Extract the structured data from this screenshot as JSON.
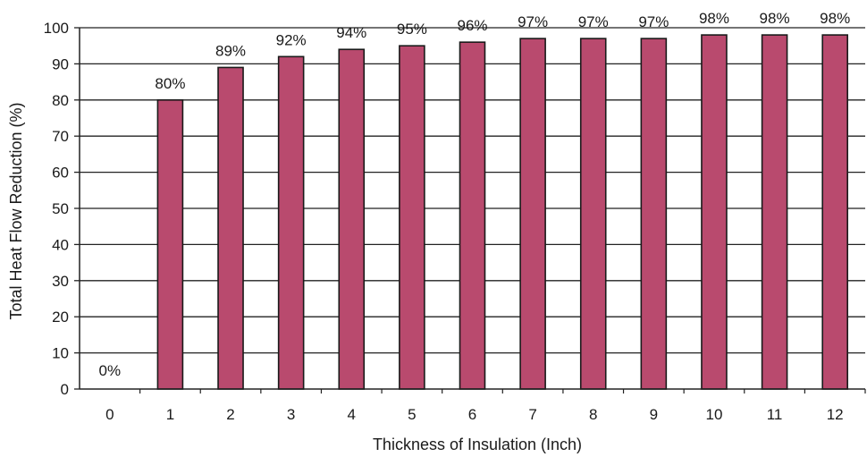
{
  "chart_data": {
    "type": "bar",
    "categories": [
      "0",
      "1",
      "2",
      "3",
      "4",
      "5",
      "6",
      "7",
      "8",
      "9",
      "10",
      "11",
      "12"
    ],
    "values": [
      0,
      80,
      89,
      92,
      94,
      95,
      96,
      97,
      97,
      97,
      98,
      98,
      98
    ],
    "data_labels": [
      "0%",
      "80%",
      "89%",
      "92%",
      "94%",
      "95%",
      "96%",
      "97%",
      "97%",
      "97%",
      "98%",
      "98%",
      "98%"
    ],
    "title": "",
    "xlabel": "Thickness of Insulation (Inch)",
    "ylabel": "Total Heat Flow Reduction (%)",
    "ylim": [
      0,
      100
    ],
    "yticks": [
      0,
      10,
      20,
      30,
      40,
      50,
      60,
      70,
      80,
      90,
      100
    ],
    "grid": true,
    "legend": "none",
    "colors": {
      "bar_fill": "#b94a6e",
      "bar_stroke": "#1a1a1a",
      "grid": "#222222",
      "axis": "#222222"
    }
  }
}
